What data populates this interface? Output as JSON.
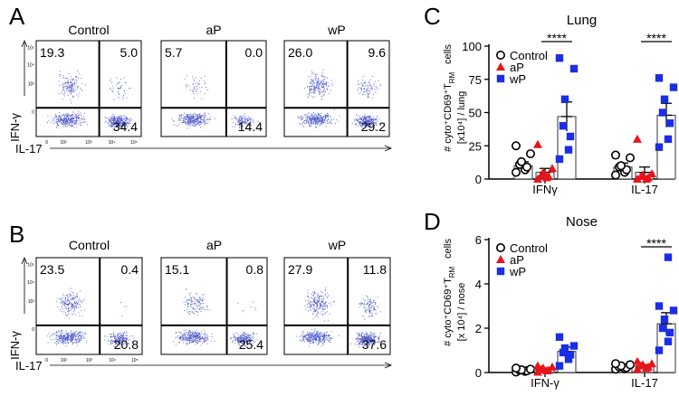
{
  "panels": {
    "A": {
      "letter": "A",
      "ylabel": "IFN-γ",
      "xlabel": "IL-17",
      "groups": [
        "Control",
        "aP",
        "wP"
      ],
      "quadrants": [
        {
          "ul": "19.3",
          "ur": "5.0",
          "lr": "34.4"
        },
        {
          "ul": "5.7",
          "ur": "0.0",
          "lr": "14.4"
        },
        {
          "ul": "26.0",
          "ur": "9.6",
          "lr": "29.2"
        }
      ]
    },
    "B": {
      "letter": "B",
      "ylabel": "IFN-γ",
      "xlabel": "IL-17",
      "groups": [
        "Control",
        "aP",
        "wP"
      ],
      "quadrants": [
        {
          "ul": "23.5",
          "ur": "0.4",
          "lr": "20.8"
        },
        {
          "ul": "15.1",
          "ur": "0.8",
          "lr": "25.4"
        },
        {
          "ul": "27.9",
          "ur": "11.8",
          "lr": "37.6"
        }
      ]
    }
  },
  "flow_ticks": {
    "x": [
      "0",
      "10²",
      "10³",
      "10⁴",
      "10⁵"
    ],
    "y": [
      "0",
      "10³",
      "10⁴",
      "10⁵"
    ]
  },
  "chart_data": [
    {
      "type": "bar",
      "letter": "C",
      "title": "Lung",
      "ylabel": "# cyto⁺CD69⁺T_RM cells [x10⁴] / lung",
      "ylabel_line1": "# cyto",
      "ylabel_line2": "[x10⁴] / lung",
      "ylim": [
        0,
        100
      ],
      "yticks": [
        "0",
        "25",
        "50",
        "75",
        "100"
      ],
      "categories": [
        "IFNγ",
        "IL-17"
      ],
      "significance": [
        "****",
        "****"
      ],
      "series": [
        {
          "name": "Control",
          "marker": "circle",
          "color": "#000000",
          "means": [
            10,
            9
          ],
          "errors": [
            3,
            3
          ],
          "points": [
            [
              5,
              7,
              9,
              11,
              13,
              19,
              25
            ],
            [
              3,
              5,
              7,
              9,
              10,
              16,
              18
            ]
          ]
        },
        {
          "name": "aP",
          "marker": "triangle",
          "color": "#e8141b",
          "means": [
            5,
            5
          ],
          "errors": [
            3,
            4
          ],
          "points": [
            [
              0,
              1,
              2,
              3,
              5,
              8,
              26
            ],
            [
              0,
              0,
              1,
              2,
              3,
              4,
              30
            ]
          ]
        },
        {
          "name": "wP",
          "marker": "square",
          "color": "#1a2ee6",
          "means": [
            47,
            48
          ],
          "errors": [
            11,
            9
          ],
          "points": [
            [
              15,
              22,
              32,
              40,
              60,
              83,
              91
            ],
            [
              24,
              30,
              42,
              50,
              60,
              69,
              76
            ]
          ]
        }
      ]
    },
    {
      "type": "bar",
      "letter": "D",
      "title": "Nose",
      "ylabel": "# cyto⁺CD69⁺T_RM cells [x 10⁴] / nose",
      "ylabel_line1": "# cyto",
      "ylabel_line2": "[x 10⁴] / nose",
      "ylim": [
        0,
        6
      ],
      "yticks": [
        "0",
        "2",
        "4",
        "6"
      ],
      "categories": [
        "IFN-γ",
        "IL-17"
      ],
      "significance": [
        "",
        "****"
      ],
      "series": [
        {
          "name": "Control",
          "marker": "circle",
          "color": "#000000",
          "means": [
            0.1,
            0.25
          ],
          "errors": [
            0.03,
            0.05
          ],
          "points": [
            [
              0.02,
              0.05,
              0.08,
              0.1,
              0.12,
              0.15,
              0.2
            ],
            [
              0.15,
              0.18,
              0.22,
              0.25,
              0.3,
              0.35,
              0.4
            ]
          ]
        },
        {
          "name": "aP",
          "marker": "triangle",
          "color": "#e8141b",
          "means": [
            0.15,
            0.3
          ],
          "errors": [
            0.05,
            0.05
          ],
          "points": [
            [
              0.02,
              0.08,
              0.1,
              0.15,
              0.2,
              0.25,
              0.3
            ],
            [
              0.15,
              0.2,
              0.25,
              0.3,
              0.35,
              0.4,
              0.5
            ]
          ]
        },
        {
          "name": "wP",
          "marker": "square",
          "color": "#1a2ee6",
          "means": [
            0.95,
            2.2
          ],
          "errors": [
            0.2,
            0.5
          ],
          "points": [
            [
              0.3,
              0.6,
              0.8,
              0.9,
              1.1,
              1.2,
              1.6
            ],
            [
              1.0,
              1.4,
              1.8,
              2.0,
              2.4,
              2.8,
              3.0,
              5.2
            ]
          ]
        }
      ]
    }
  ]
}
